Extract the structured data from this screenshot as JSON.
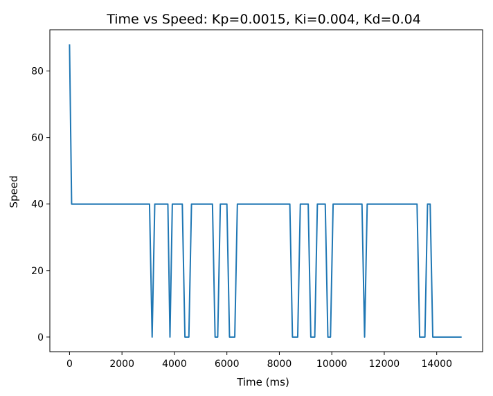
{
  "chart_data": {
    "type": "line",
    "title": "Time vs Speed: Kp=0.0015, Ki=0.004, Kd=0.04",
    "xlabel": "Time (ms)",
    "ylabel": "Speed",
    "xlim": [
      -750,
      15750
    ],
    "ylim": [
      -4.4,
      92.4
    ],
    "xticks": [
      0,
      2000,
      4000,
      6000,
      8000,
      10000,
      12000,
      14000
    ],
    "yticks": [
      0,
      20,
      40,
      60,
      80
    ],
    "grid": false,
    "series": [
      {
        "color": "#1f77b4",
        "points": [
          [
            0,
            88
          ],
          [
            80,
            40
          ],
          [
            3050,
            40
          ],
          [
            3150,
            0
          ],
          [
            3250,
            40
          ],
          [
            3750,
            40
          ],
          [
            3830,
            0
          ],
          [
            3920,
            40
          ],
          [
            4300,
            40
          ],
          [
            4400,
            0
          ],
          [
            4550,
            0
          ],
          [
            4650,
            40
          ],
          [
            5450,
            40
          ],
          [
            5550,
            0
          ],
          [
            5650,
            0
          ],
          [
            5750,
            40
          ],
          [
            6000,
            40
          ],
          [
            6100,
            0
          ],
          [
            6300,
            0
          ],
          [
            6400,
            40
          ],
          [
            8400,
            40
          ],
          [
            8500,
            0
          ],
          [
            8700,
            0
          ],
          [
            8800,
            40
          ],
          [
            9100,
            40
          ],
          [
            9200,
            0
          ],
          [
            9350,
            0
          ],
          [
            9450,
            40
          ],
          [
            9750,
            40
          ],
          [
            9850,
            0
          ],
          [
            9950,
            0
          ],
          [
            10050,
            40
          ],
          [
            11150,
            40
          ],
          [
            11250,
            0
          ],
          [
            11350,
            40
          ],
          [
            13250,
            40
          ],
          [
            13350,
            0
          ],
          [
            13550,
            0
          ],
          [
            13650,
            40
          ],
          [
            13750,
            40
          ],
          [
            13850,
            0
          ],
          [
            14950,
            0
          ]
        ]
      }
    ]
  }
}
